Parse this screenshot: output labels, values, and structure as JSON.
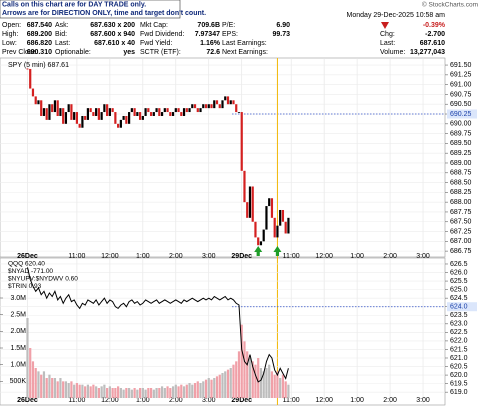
{
  "notice": [
    "Calls on this chart are for DAY TRADE only.",
    "Arrows are for DIRECTION ONLY, time and target don't count."
  ],
  "watermark": "© StockCharts.com",
  "timestamp": "Monday  29-Dec-2025  10:58 am",
  "quote": {
    "columns": [
      [
        {
          "label": "Open:",
          "value": "687.540"
        },
        {
          "label": "High:",
          "value": "689.200"
        },
        {
          "label": "Low:",
          "value": "686.820"
        },
        {
          "label": "Prev Close:",
          "value": "690.310"
        }
      ],
      [
        {
          "label": "Ask:",
          "value": "687.630 x 200"
        },
        {
          "label": "Bid:",
          "value": "687.600 x 940"
        },
        {
          "label": "Last:",
          "value": "687.610 x 40"
        },
        {
          "label": "Optionable:",
          "value": "yes"
        }
      ],
      [
        {
          "label": "Mkt Cap:",
          "value": "709.6B"
        },
        {
          "label": "Fwd Dividend:",
          "value": "7.97347"
        },
        {
          "label": "Fwd Yield:",
          "value": "1.16%"
        },
        {
          "label": "SCTR (ETF):",
          "value": "72.6"
        }
      ],
      [
        {
          "label": "P/E:",
          "value": "6.90"
        },
        {
          "label": "EPS:",
          "value": "99.73"
        },
        {
          "label": "Last Earnings:"
        },
        {
          "label": "Next Earnings:"
        }
      ],
      [
        {
          "value": "-0.39%"
        },
        {
          "label": "Chg:",
          "value": "-2.700"
        },
        {
          "label": "Last:",
          "value": "687.610"
        },
        {
          "label": "Volume:",
          "value": "13,277,043"
        }
      ]
    ]
  },
  "chart_data": [
    {
      "type": "candlestick",
      "legend_label": "SPY (5 min) 687.61",
      "ref_line": 690.25,
      "vline": 91,
      "up_arrows": [
        84,
        91
      ],
      "grid": true,
      "xlim": [
        -10,
        152
      ],
      "xticks": [
        {
          "value": 0,
          "label": "26Dec"
        },
        {
          "value": 18,
          "label": "11:00"
        },
        {
          "value": 30,
          "label": "12:00"
        },
        {
          "value": 42,
          "label": "1:00"
        },
        {
          "value": 54,
          "label": "2:00"
        },
        {
          "value": 66,
          "label": "3:00"
        },
        {
          "value": 78,
          "label": "29Dec"
        },
        {
          "value": 96,
          "label": "11:00"
        },
        {
          "value": 108,
          "label": "12:00"
        },
        {
          "value": 120,
          "label": "1:00"
        },
        {
          "value": 132,
          "label": "2:00"
        },
        {
          "value": 144,
          "label": "3:00"
        }
      ],
      "ylim": [
        686.6,
        691.68
      ],
      "yticks": [
        {
          "value": 691.5,
          "label": "691.50"
        },
        691.25,
        {
          "value": 691,
          "label": "691.00"
        },
        690.75,
        {
          "value": 690.5,
          "label": "690.50"
        },
        690.25,
        {
          "value": 690,
          "label": "690.00"
        },
        689.75,
        {
          "value": 689.5,
          "label": "689.50"
        },
        689.25,
        {
          "value": 689,
          "label": "689.00"
        },
        688.75,
        {
          "value": 688.5,
          "label": "688.50"
        },
        688.25,
        {
          "value": 688,
          "label": "688.00"
        },
        687.75,
        {
          "value": 687.5,
          "label": "687.50"
        },
        687.25,
        {
          "value": 687,
          "label": "687.00"
        },
        686.75
      ],
      "series": [
        {
          "name": "SPY",
          "up_color": "#000000",
          "down_color": "#d42020",
          "values": [
            691.4,
            690.9,
            690.7,
            690.5,
            690.6,
            690.2,
            690.4,
            690.1,
            690.5,
            690.3,
            690.6,
            690.2,
            690.4,
            690.0,
            690.3,
            690.5,
            690.1,
            690.3,
            690.0,
            689.9,
            690.2,
            690.1,
            690.4,
            690.3,
            690.2,
            690.4,
            690.1,
            690.3,
            690.5,
            690.2,
            690.4,
            690.3,
            690.0,
            689.9,
            690.1,
            690.2,
            690.0,
            690.3,
            690.4,
            690.2,
            690.3,
            690.1,
            690.2,
            690.4,
            690.3,
            690.2,
            690.3,
            690.4,
            690.2,
            690.3,
            690.4,
            690.3,
            690.2,
            690.3,
            690.4,
            690.3,
            690.2,
            690.4,
            690.3,
            690.4,
            690.5,
            690.4,
            690.3,
            690.4,
            690.5,
            690.4,
            690.5,
            690.4,
            690.6,
            690.5,
            690.4,
            690.6,
            690.7,
            690.5,
            690.6,
            690.5,
            690.3,
            690.3,
            688.8,
            688.0,
            687.6,
            688.4,
            687.5,
            687.1,
            686.9,
            687.0,
            687.3,
            687.9,
            688.1,
            687.6,
            687.1,
            687.4,
            687.8,
            687.5,
            687.2,
            687.6
          ]
        }
      ]
    },
    {
      "type": "line",
      "legend": [
        "QQQ 620.40",
        "$NYAD -771.00",
        "$NYUPV:$NYDWV 0.60",
        "$TRIN 0.93"
      ],
      "ref_line": 624,
      "grid": true,
      "xlim": [
        -10,
        152
      ],
      "xticks": [
        {
          "value": 0,
          "label": "26Dec"
        },
        {
          "value": 18,
          "label": "11:00"
        },
        {
          "value": 30,
          "label": "12:00"
        },
        {
          "value": 42,
          "label": "1:00"
        },
        {
          "value": 54,
          "label": "2:00"
        },
        {
          "value": 66,
          "label": "3:00"
        },
        {
          "value": 78,
          "label": "29Dec"
        },
        {
          "value": 96,
          "label": "11:00"
        },
        {
          "value": 108,
          "label": "12:00"
        },
        {
          "value": 120,
          "label": "1:00"
        },
        {
          "value": 132,
          "label": "2:00"
        },
        {
          "value": 144,
          "label": "3:00"
        }
      ],
      "ylim": [
        618.25,
        626.85
      ],
      "yticks": [
        626.5,
        {
          "value": 626,
          "label": "626.0"
        },
        625.5,
        {
          "value": 625,
          "label": "625.0"
        },
        624.5,
        {
          "value": 624,
          "label": "624.0"
        },
        623.5,
        {
          "value": 623,
          "label": "623.0"
        },
        622.5,
        {
          "value": 622,
          "label": "622.0"
        },
        621.5,
        {
          "value": 621,
          "label": "621.0"
        },
        620.5,
        {
          "value": 620,
          "label": "620.0"
        },
        619.5,
        {
          "value": 619,
          "label": "619.0"
        }
      ],
      "y2lim": [
        0,
        4200000
      ],
      "y2ticks": [
        {
          "value": 3000000,
          "label": "3.0M"
        },
        {
          "value": 2500000,
          "label": "2.5M"
        },
        {
          "value": 2000000,
          "label": "2.0M"
        },
        {
          "value": 1500000,
          "label": "1.5M"
        },
        {
          "value": 1000000,
          "label": "1.0M"
        },
        {
          "value": 500000,
          "label": "500K"
        }
      ],
      "series": [
        {
          "name": "QQQ",
          "color": "#000000",
          "values": [
            626.3,
            625.6,
            625.2,
            624.9,
            625.1,
            624.7,
            624.9,
            624.5,
            624.8,
            624.6,
            624.9,
            624.4,
            624.6,
            624.2,
            624.5,
            624.7,
            624.3,
            624.4,
            624.1,
            623.9,
            624.2,
            624.1,
            624.4,
            624.3,
            624.2,
            624.4,
            624.1,
            624.3,
            624.5,
            624.2,
            624.4,
            624.3,
            624.0,
            623.9,
            624.1,
            624.2,
            624.0,
            624.3,
            624.4,
            624.2,
            624.3,
            624.1,
            624.2,
            624.4,
            624.3,
            624.2,
            624.3,
            624.4,
            624.2,
            624.3,
            624.4,
            624.3,
            624.2,
            624.3,
            624.4,
            624.3,
            624.2,
            624.4,
            624.3,
            624.4,
            624.5,
            624.4,
            624.3,
            624.4,
            624.5,
            624.4,
            624.5,
            624.4,
            624.6,
            624.5,
            624.4,
            624.5,
            624.6,
            624.4,
            624.5,
            624.4,
            624.2,
            624.1,
            621.5,
            620.8,
            620.6,
            621.2,
            620.5,
            620.0,
            619.6,
            619.7,
            620.1,
            620.8,
            621.2,
            621.0,
            620.3,
            620.0,
            620.4,
            620.1,
            619.8,
            620.4
          ]
        },
        {
          "type": "bar",
          "axis": "y2",
          "up_color": "#bdbdbd",
          "down_color": "#f0a0a8",
          "values": [
            2400000,
            1500000,
            1100000,
            900000,
            800000,
            700000,
            800000,
            600000,
            700000,
            600000,
            600000,
            500000,
            600000,
            500000,
            500000,
            450000,
            500000,
            400000,
            450000,
            400000,
            400000,
            350000,
            400000,
            350000,
            400000,
            350000,
            300000,
            350000,
            400000,
            300000,
            350000,
            300000,
            300000,
            350000,
            300000,
            250000,
            300000,
            300000,
            250000,
            300000,
            250000,
            300000,
            300000,
            250000,
            300000,
            300000,
            250000,
            300000,
            300000,
            350000,
            300000,
            350000,
            300000,
            350000,
            400000,
            350000,
            400000,
            350000,
            400000,
            450000,
            400000,
            450000,
            500000,
            450000,
            500000,
            550000,
            600000,
            550000,
            600000,
            650000,
            700000,
            750000,
            800000,
            850000,
            900000,
            1000000,
            1100000,
            1400000,
            2200000,
            1700000,
            1400000,
            1200000,
            1100000,
            1000000,
            1200000,
            900000,
            800000,
            900000,
            1000000,
            800000,
            700000,
            800000,
            600000,
            700000,
            500000,
            400000
          ]
        }
      ]
    }
  ]
}
